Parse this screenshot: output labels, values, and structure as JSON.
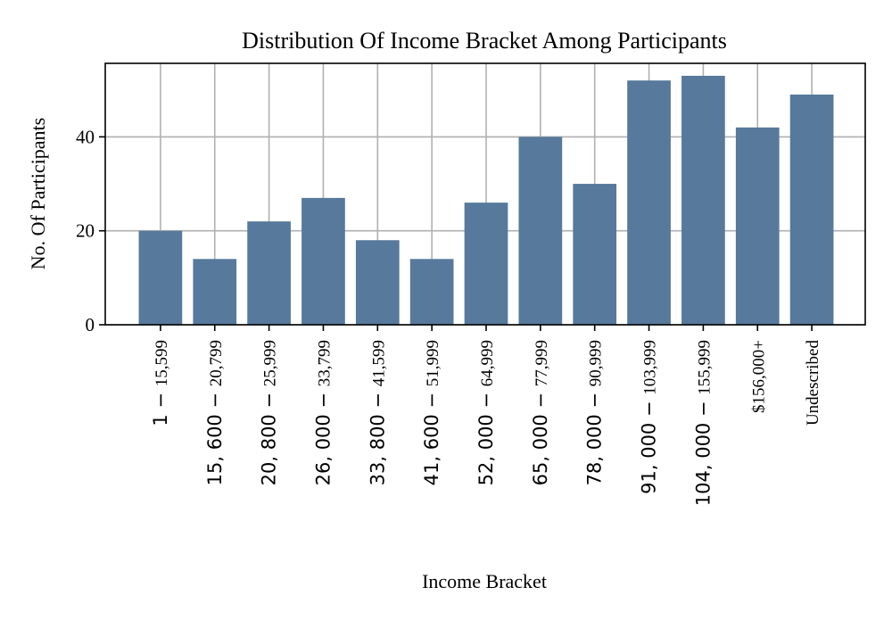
{
  "chart_data": {
    "type": "bar",
    "title": "Distribution Of Income Bracket Among Participants",
    "xlabel": "Income Bracket",
    "ylabel": "No. Of Participants",
    "categories": [
      "$1 - $15,599",
      "$15,600 - $20,799",
      "$20,800 - $25,999",
      "$26,000 - $33,799",
      "$33,800 - $41,599",
      "$41,600 - $51,999",
      "$52,000 - $64,999",
      "$65,000 - $77,999",
      "$78,000 - $90,999",
      "$91,000 - $103,999",
      "$104,000 - $155,999",
      "$156,000+",
      "Undescribed"
    ],
    "category_label_parts": [
      {
        "left": "1",
        "right": "15,599"
      },
      {
        "left": "15, 600",
        "right": "20,799"
      },
      {
        "left": "20, 800",
        "right": "25,999"
      },
      {
        "left": "26, 000",
        "right": "33,799"
      },
      {
        "left": "33, 800",
        "right": "41,599"
      },
      {
        "left": "41, 600",
        "right": "51,999"
      },
      {
        "left": "52, 000",
        "right": "64,999"
      },
      {
        "left": "65, 000",
        "right": "77,999"
      },
      {
        "left": "78, 000",
        "right": "90,999"
      },
      {
        "left": "91, 000",
        "right": "103,999"
      },
      {
        "left": "104, 000",
        "right": "155,999"
      },
      {
        "plain": "$156,000+"
      },
      {
        "plain": "Undescribed"
      }
    ],
    "values": [
      20,
      14,
      22,
      27,
      18,
      14,
      26,
      40,
      30,
      52,
      53,
      42,
      49
    ],
    "ylim": [
      0,
      55.65
    ],
    "yticks": [
      0,
      20,
      40
    ],
    "grid": true,
    "bar_color": "#56799c"
  }
}
